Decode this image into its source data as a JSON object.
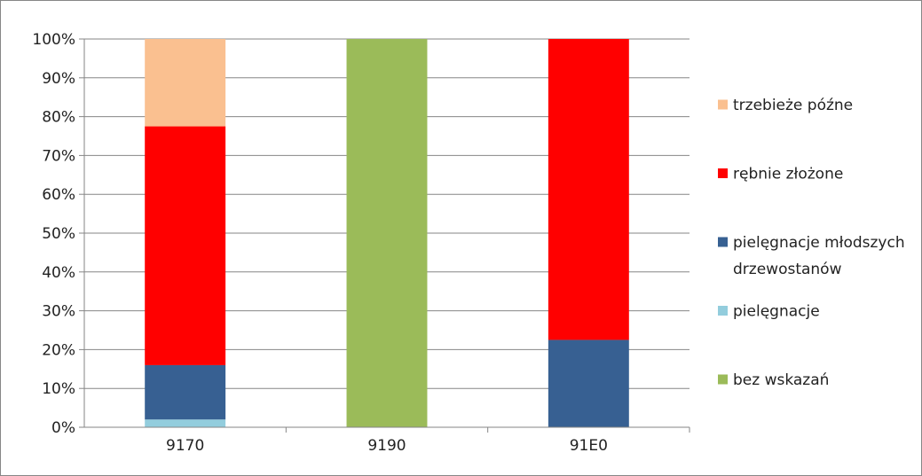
{
  "chart_data": {
    "type": "bar",
    "stacked": true,
    "percent": true,
    "title": "",
    "xlabel": "",
    "ylabel": "",
    "ylim": [
      0,
      100
    ],
    "yticks": [
      "0%",
      "10%",
      "20%",
      "30%",
      "40%",
      "50%",
      "60%",
      "70%",
      "80%",
      "90%",
      "100%"
    ],
    "categories": [
      "9170",
      "9190",
      "91E0"
    ],
    "series": [
      {
        "name": "bez wskazań",
        "color": "#9bbb59",
        "values": [
          0,
          100,
          0
        ]
      },
      {
        "name": "pielęgnacje",
        "color": "#93cddd",
        "values": [
          2,
          0,
          0
        ]
      },
      {
        "name": "pielęgnacje młodszych drzewostanów",
        "color": "#376092",
        "values": [
          14,
          0,
          22.5
        ]
      },
      {
        "name": "rębnie złożone",
        "color": "#ff0000",
        "values": [
          61.5,
          0,
          77.5
        ]
      },
      {
        "name": "trzebieże późne",
        "color": "#fac090",
        "values": [
          22.5,
          0,
          0
        ]
      }
    ],
    "legend": {
      "position": "right",
      "order": [
        {
          "series": 4,
          "lines": [
            "trzebieże późne"
          ]
        },
        {
          "series": 3,
          "lines": [
            "rębnie złożone"
          ]
        },
        {
          "series": 2,
          "lines": [
            "pielęgnacje młodszych",
            "drzewostanów"
          ]
        },
        {
          "series": 1,
          "lines": [
            "pielęgnacje"
          ]
        },
        {
          "series": 0,
          "lines": [
            "bez wskazań"
          ]
        }
      ]
    },
    "grid": true,
    "gridColor": "#868686",
    "axisColor": "#868686"
  }
}
